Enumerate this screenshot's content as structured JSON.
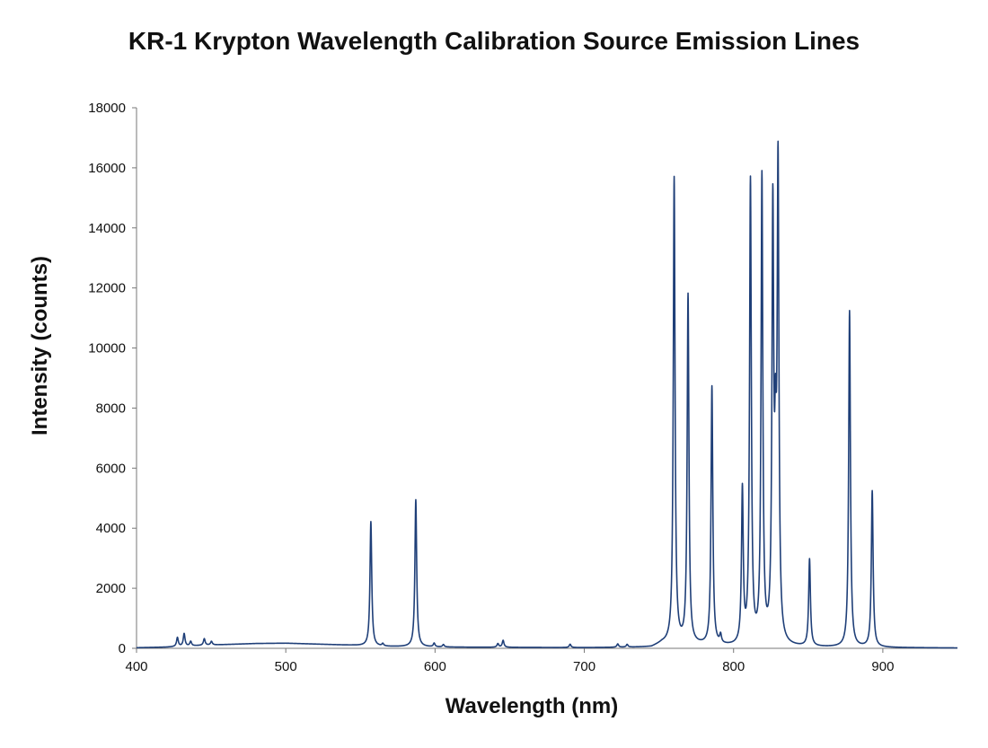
{
  "chart_data": {
    "type": "line",
    "title": "KR-1 Krypton Wavelength Calibration Source Emission Lines",
    "xlabel": "Wavelength (nm)",
    "ylabel": "Intensity (counts)",
    "xlim": [
      400,
      950
    ],
    "ylim": [
      0,
      18000
    ],
    "x_ticks": [
      400,
      500,
      600,
      700,
      800,
      900
    ],
    "y_ticks": [
      0,
      2000,
      4000,
      6000,
      8000,
      10000,
      12000,
      14000,
      16000,
      18000
    ],
    "grid": false,
    "legend": "none",
    "line_color": "#1f3f78",
    "baseline": [
      {
        "x": 400,
        "y": 20
      },
      {
        "x": 420,
        "y": 40
      },
      {
        "x": 450,
        "y": 110
      },
      {
        "x": 480,
        "y": 160
      },
      {
        "x": 500,
        "y": 170
      },
      {
        "x": 520,
        "y": 140
      },
      {
        "x": 545,
        "y": 100
      },
      {
        "x": 560,
        "y": 60
      },
      {
        "x": 600,
        "y": 40
      },
      {
        "x": 700,
        "y": 20
      },
      {
        "x": 745,
        "y": 30
      },
      {
        "x": 752,
        "y": 150
      },
      {
        "x": 800,
        "y": 40
      },
      {
        "x": 900,
        "y": 20
      },
      {
        "x": 950,
        "y": 10
      }
    ],
    "peaks": [
      {
        "x": 427.4,
        "y": 300
      },
      {
        "x": 431.9,
        "y": 420
      },
      {
        "x": 436.3,
        "y": 150
      },
      {
        "x": 445.4,
        "y": 220
      },
      {
        "x": 450.2,
        "y": 120
      },
      {
        "x": 557.0,
        "y": 4150
      },
      {
        "x": 565.0,
        "y": 80
      },
      {
        "x": 587.1,
        "y": 4900
      },
      {
        "x": 599.4,
        "y": 120
      },
      {
        "x": 605.6,
        "y": 80
      },
      {
        "x": 642.1,
        "y": 120
      },
      {
        "x": 645.6,
        "y": 230
      },
      {
        "x": 690.5,
        "y": 110
      },
      {
        "x": 722.4,
        "y": 110
      },
      {
        "x": 728.7,
        "y": 90
      },
      {
        "x": 760.2,
        "y": 15500
      },
      {
        "x": 769.5,
        "y": 11600
      },
      {
        "x": 785.5,
        "y": 8600
      },
      {
        "x": 791.3,
        "y": 280
      },
      {
        "x": 805.9,
        "y": 5100
      },
      {
        "x": 811.3,
        "y": 15400
      },
      {
        "x": 819.0,
        "y": 15500
      },
      {
        "x": 826.3,
        "y": 14000
      },
      {
        "x": 828.1,
        "y": 4900
      },
      {
        "x": 829.8,
        "y": 15500
      },
      {
        "x": 850.9,
        "y": 2900
      },
      {
        "x": 877.7,
        "y": 11200
      },
      {
        "x": 892.9,
        "y": 5200
      }
    ]
  }
}
